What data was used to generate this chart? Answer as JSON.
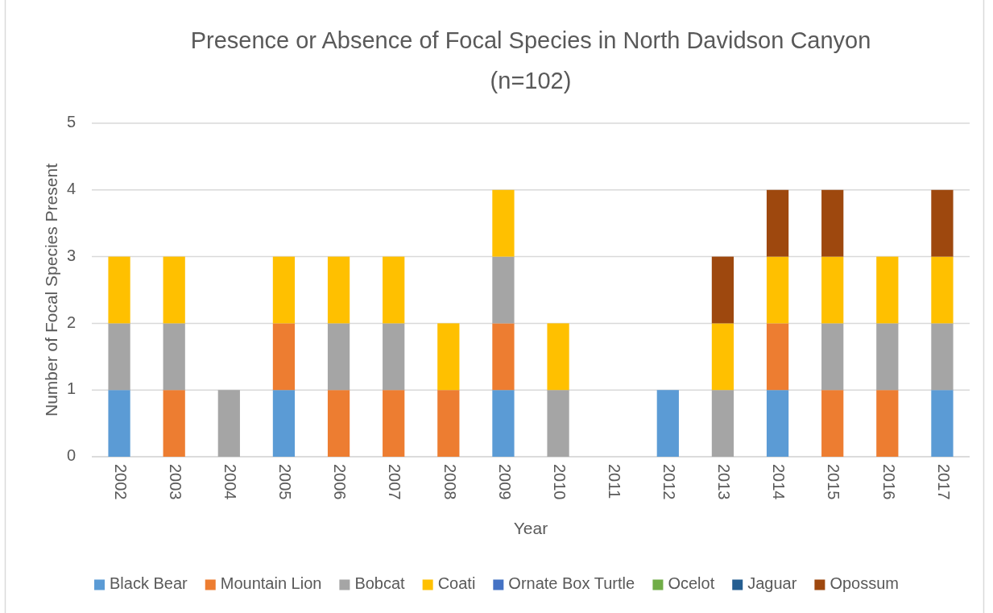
{
  "chart_data": {
    "type": "bar",
    "title": "Presence or Absence of Focal Species in North Davidson Canyon",
    "subtitle": "(n=102)",
    "xlabel": "Year",
    "ylabel": "Number of Focal Species Present",
    "categories": [
      "2002",
      "2003",
      "2004",
      "2005",
      "2006",
      "2007",
      "2008",
      "2009",
      "2010",
      "2011",
      "2012",
      "2013",
      "2014",
      "2015",
      "2016",
      "2017"
    ],
    "series": [
      {
        "name": "Black Bear",
        "color": "#5b9bd5",
        "values": [
          1,
          0,
          0,
          1,
          0,
          0,
          0,
          1,
          0,
          0,
          1,
          0,
          1,
          0,
          0,
          1
        ]
      },
      {
        "name": "Mountain Lion",
        "color": "#ed7d31",
        "values": [
          0,
          1,
          0,
          1,
          1,
          1,
          1,
          1,
          0,
          0,
          0,
          0,
          1,
          1,
          1,
          0
        ]
      },
      {
        "name": "Bobcat",
        "color": "#a5a5a5",
        "values": [
          1,
          1,
          1,
          0,
          1,
          1,
          0,
          1,
          1,
          0,
          0,
          1,
          0,
          1,
          1,
          1
        ]
      },
      {
        "name": "Coati",
        "color": "#ffc000",
        "values": [
          1,
          1,
          0,
          1,
          1,
          1,
          1,
          1,
          1,
          0,
          0,
          1,
          1,
          1,
          1,
          1
        ]
      },
      {
        "name": "Ornate Box Turtle",
        "color": "#4472c4",
        "values": [
          0,
          0,
          0,
          0,
          0,
          0,
          0,
          0,
          0,
          0,
          0,
          0,
          0,
          0,
          0,
          0
        ]
      },
      {
        "name": "Ocelot",
        "color": "#70ad47",
        "values": [
          0,
          0,
          0,
          0,
          0,
          0,
          0,
          0,
          0,
          0,
          0,
          0,
          0,
          0,
          0,
          0
        ]
      },
      {
        "name": "Jaguar",
        "color": "#255e91",
        "values": [
          0,
          0,
          0,
          0,
          0,
          0,
          0,
          0,
          0,
          0,
          0,
          0,
          0,
          0,
          0,
          0
        ]
      },
      {
        "name": "Opossum",
        "color": "#9e480e",
        "values": [
          0,
          0,
          0,
          0,
          0,
          0,
          0,
          0,
          0,
          0,
          0,
          1,
          1,
          1,
          0,
          1
        ]
      }
    ],
    "stacked": true,
    "ylim": [
      0,
      5
    ],
    "yticks": [
      0,
      1,
      2,
      3,
      4,
      5
    ],
    "grid": "y",
    "legend": "bottom"
  }
}
